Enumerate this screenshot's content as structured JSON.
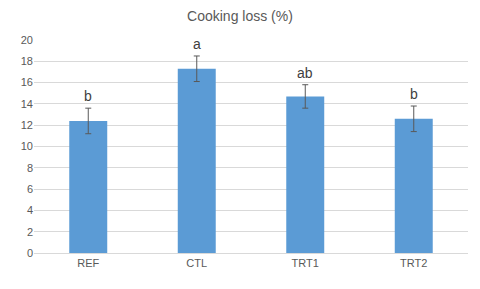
{
  "chart_data": {
    "type": "bar",
    "title": "Cooking loss (%)",
    "categories": [
      "REF",
      "CTL",
      "TRT1",
      "TRT2"
    ],
    "values": [
      12.4,
      17.3,
      14.7,
      12.6
    ],
    "errors": [
      1.2,
      1.2,
      1.1,
      1.2
    ],
    "annotations": [
      "b",
      "a",
      "ab",
      "b"
    ],
    "color": "#5b9bd5",
    "ylim": [
      0,
      20
    ],
    "yticks": [
      0,
      2,
      4,
      6,
      8,
      10,
      12,
      14,
      16,
      18,
      20
    ],
    "grid": true
  }
}
